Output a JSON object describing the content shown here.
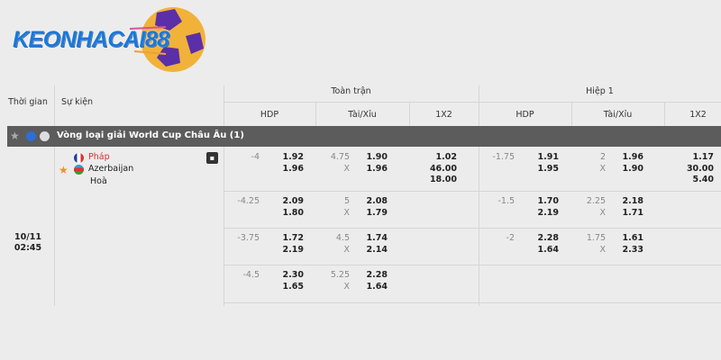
{
  "brand": {
    "logo_text": "KEONHACAI88"
  },
  "columns": {
    "time": "Thời gian",
    "event": "Sự kiện",
    "full_time": "Toàn trận",
    "first_half": "Hiệp 1",
    "hdp": "HDP",
    "ou": "Tài/Xỉu",
    "x12": "1X2"
  },
  "league": {
    "name": "Vòng loại giải World Cup Châu Âu (1)"
  },
  "match": {
    "date": "10/11",
    "time": "02:45",
    "home": "Pháp",
    "away": "Azerbaijan",
    "draw": "Hoà",
    "home_color": "#d9302c"
  },
  "rows": [
    {
      "ft_hdp": "-4",
      "ft_hdp_h": "1.92",
      "ft_hdp_a": "1.96",
      "ft_ou": "4.75",
      "ft_ou_x": "X",
      "ft_ou_o": "1.90",
      "ft_ou_u": "1.96",
      "ft_1": "1.02",
      "ft_2": "46.00",
      "ft_x": "18.00",
      "h1_hdp": "-1.75",
      "h1_hdp_h": "1.91",
      "h1_hdp_a": "1.95",
      "h1_ou": "2",
      "h1_ou_x": "X",
      "h1_ou_o": "1.96",
      "h1_ou_u": "1.90",
      "h1_1": "1.17",
      "h1_2": "30.00",
      "h1_x": "5.40"
    },
    {
      "ft_hdp": "-4.25",
      "ft_hdp_h": "2.09",
      "ft_hdp_a": "1.80",
      "ft_ou": "5",
      "ft_ou_x": "X",
      "ft_ou_o": "2.08",
      "ft_ou_u": "1.79",
      "h1_hdp": "-1.5",
      "h1_hdp_h": "1.70",
      "h1_hdp_a": "2.19",
      "h1_ou": "2.25",
      "h1_ou_x": "X",
      "h1_ou_o": "2.18",
      "h1_ou_u": "1.71"
    },
    {
      "ft_hdp": "-3.75",
      "ft_hdp_h": "1.72",
      "ft_hdp_a": "2.19",
      "ft_ou": "4.5",
      "ft_ou_x": "X",
      "ft_ou_o": "1.74",
      "ft_ou_u": "2.14",
      "h1_hdp": "-2",
      "h1_hdp_h": "2.28",
      "h1_hdp_a": "1.64",
      "h1_ou": "1.75",
      "h1_ou_x": "X",
      "h1_ou_o": "1.61",
      "h1_ou_u": "2.33"
    },
    {
      "ft_hdp": "-4.5",
      "ft_hdp_h": "2.30",
      "ft_hdp_a": "1.65",
      "ft_ou": "5.25",
      "ft_ou_x": "X",
      "ft_ou_o": "2.28",
      "ft_ou_u": "1.64"
    }
  ]
}
